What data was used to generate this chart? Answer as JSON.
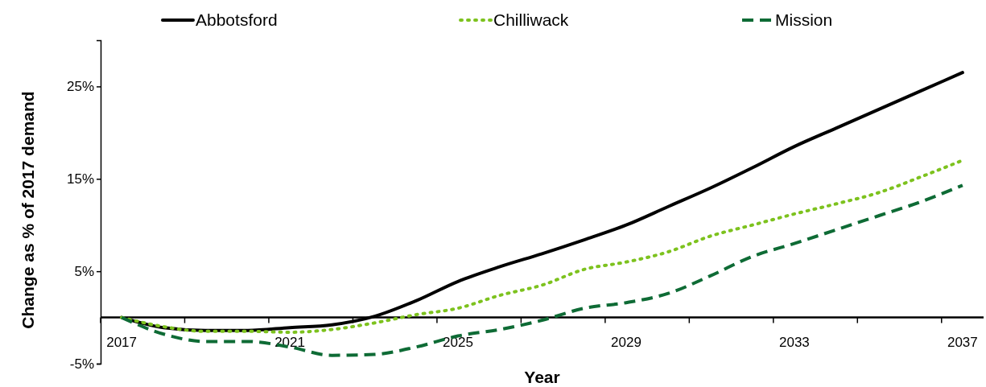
{
  "chart_data": {
    "type": "line",
    "xlabel": "Year",
    "ylabel": "Change as % of 2017 demand",
    "categories": [
      "2017",
      null,
      null,
      null,
      "2021",
      null,
      null,
      null,
      "2025",
      null,
      null,
      null,
      "2029",
      null,
      null,
      null,
      "2033",
      null,
      null,
      null,
      "2037"
    ],
    "series": [
      {
        "name": "Abbotsford",
        "color": "#000000",
        "line_style": "solid",
        "values": [
          0,
          -1.1,
          -1.4,
          -1.4,
          -1.1,
          -0.8,
          0.1,
          1.8,
          3.9,
          5.5,
          6.9,
          8.4,
          10.0,
          12.0,
          14.0,
          16.2,
          18.5,
          20.5,
          22.5,
          24.5,
          26.5
        ]
      },
      {
        "name": "Chilliwack",
        "color": "#7dc21e",
        "line_style": "dotted",
        "values": [
          0,
          -1.0,
          -1.5,
          -1.5,
          -1.6,
          -1.3,
          -0.6,
          0.3,
          1.0,
          2.4,
          3.5,
          5.2,
          6.0,
          7.1,
          8.8,
          10.0,
          11.2,
          12.3,
          13.5,
          15.2,
          17.0
        ]
      },
      {
        "name": "Mission",
        "color": "#0e6b35",
        "line_style": "dashed",
        "values": [
          0,
          -1.8,
          -2.6,
          -2.6,
          -3.2,
          -4.1,
          -4.0,
          -3.2,
          -2.0,
          -1.3,
          -0.3,
          1.0,
          1.6,
          2.6,
          4.5,
          6.6,
          8.0,
          9.5,
          11.0,
          12.5,
          14.3
        ]
      }
    ],
    "ylim": [
      -5,
      30
    ],
    "yticks": [
      {
        "value": -5,
        "label": "-5%"
      },
      {
        "value": 5,
        "label": "5%"
      },
      {
        "value": 15,
        "label": "15%"
      },
      {
        "value": 25,
        "label": "25%"
      }
    ],
    "grid": false,
    "legend": "top",
    "marker": "none"
  }
}
